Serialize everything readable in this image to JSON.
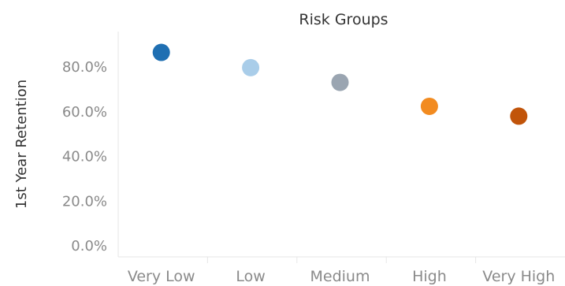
{
  "chart_data": {
    "type": "scatter",
    "title": "Risk Groups",
    "xlabel": "",
    "ylabel": "1st Year Retention",
    "categories": [
      "Very Low",
      "Low",
      "Medium",
      "High",
      "Very High"
    ],
    "values": [
      0.865,
      0.797,
      0.731,
      0.624,
      0.58
    ],
    "point_colors": [
      "#1f6fb2",
      "#a9cde9",
      "#9aa5b1",
      "#f28b20",
      "#c1540a"
    ],
    "ylim": [
      0,
      0.92
    ],
    "yticks": [
      0,
      0.2,
      0.4,
      0.6,
      0.8
    ],
    "ytick_labels": [
      "0.0%",
      "20.0%",
      "40.0%",
      "60.0%",
      "80.0%"
    ],
    "grid": false,
    "legend": "none"
  }
}
